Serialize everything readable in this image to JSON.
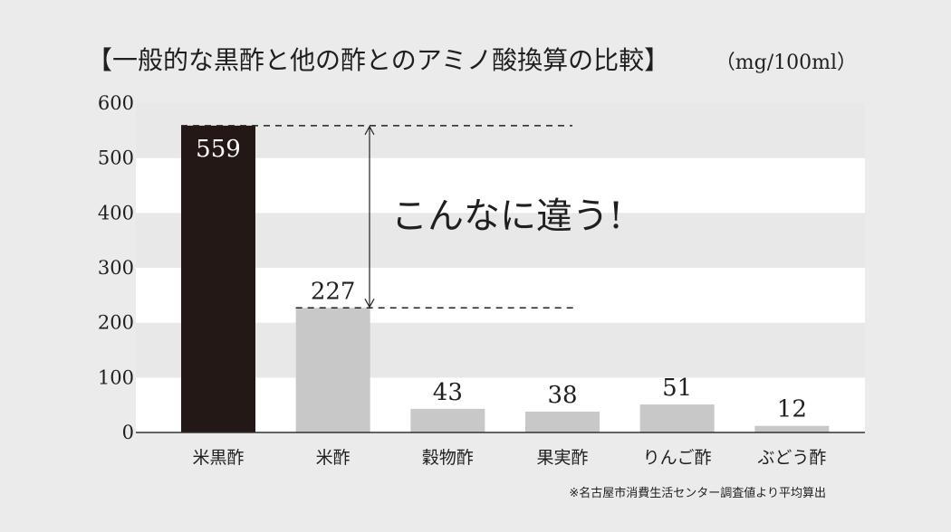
{
  "chart_data": {
    "type": "bar",
    "title": "【一般的な黒酢と他の酢とのアミノ酸換算の比較】",
    "unit": "（mg/100ml）",
    "categories": [
      "米黒酢",
      "米酢",
      "穀物酢",
      "果実酢",
      "りんご酢",
      "ぶどう酢"
    ],
    "values": [
      559,
      227,
      43,
      38,
      51,
      12
    ],
    "ylim": [
      0,
      600
    ],
    "yticks": [
      0,
      100,
      200,
      300,
      400,
      500,
      600
    ],
    "grid": "alternating horizontal bands",
    "annotation": "こんなに違う!",
    "source_note": "※名古屋市消費生活センター調査値より平均算出",
    "colors": {
      "background": "#ebebeb",
      "band": "#ffffff",
      "highlight_bar": "#231815",
      "bar": "#c8c8c8",
      "text": "#1f1f1f"
    }
  }
}
